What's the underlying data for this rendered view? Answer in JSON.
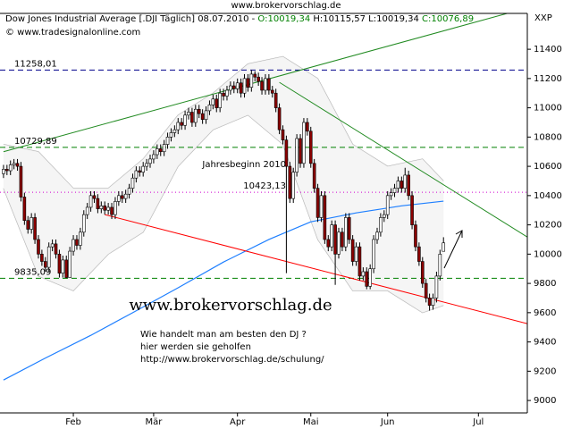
{
  "chart_data": {
    "type": "candlestick",
    "site": "www.brokervorschlag.de",
    "header_segments": [
      {
        "text": "Dow Jones Industrial Average [.DJI  Täglich] 08.07.2010 - ",
        "color": "#000000"
      },
      {
        "text": "O:10019,34",
        "color": "#008000"
      },
      {
        "text": " H:10115,57",
        "color": "#000000"
      },
      {
        "text": " L:10019,34",
        "color": "#000000"
      },
      {
        "text": " C:10076,89",
        "color": "#008000"
      }
    ],
    "copyright": "© www.tradesignalonline.com",
    "axis_code": "XXP",
    "watermark": "www.brokervorschlag.de",
    "notes": [
      "Wie handelt man am besten  den DJ ?",
      "hier werden sie geholfen",
      "http://www.brokervorschlag.de/schulung/"
    ],
    "annotation": "Jahresbeginn 2010",
    "up_color": "#ffffff",
    "down_color": "#8b0000",
    "xlim": [
      -1,
      150
    ],
    "ylim": [
      8915,
      11645
    ],
    "yticks": [
      9000,
      9200,
      9400,
      9600,
      9800,
      10000,
      10200,
      10400,
      10600,
      10800,
      11000,
      11200,
      11400
    ],
    "xticks": [
      {
        "value": 20,
        "label": "Feb"
      },
      {
        "value": 43,
        "label": "Mär"
      },
      {
        "value": 67,
        "label": "Apr"
      },
      {
        "value": 88,
        "label": "Mai"
      },
      {
        "value": 110,
        "label": "Jun"
      },
      {
        "value": 136,
        "label": "Jul"
      }
    ],
    "levels": [
      {
        "value": 11258.01,
        "label": "11258,01",
        "color": "#00008b",
        "dash": "6,4"
      },
      {
        "value": 10729.89,
        "label": "10729,89",
        "color": "#008000",
        "dash": "6,4"
      },
      {
        "value": 9835.09,
        "label": "9835,09",
        "color": "#008000",
        "dash": "6,4"
      },
      {
        "value": 10423.13,
        "label": "10423,13",
        "color": "#d000d0",
        "dash": "1,3"
      }
    ],
    "trendlines": [
      {
        "color": "#228b22",
        "points": [
          [
            0,
            10700
          ],
          [
            145,
            11650
          ]
        ]
      },
      {
        "color": "#228b22",
        "points": [
          [
            79,
            11174
          ],
          [
            150,
            10117
          ]
        ]
      },
      {
        "color": "#ff0000",
        "points": [
          [
            29,
            10270
          ],
          [
            150,
            9525
          ]
        ]
      }
    ],
    "moving_average": {
      "color": "#1e7fff",
      "x": [
        0,
        12,
        25,
        37,
        50,
        63,
        76,
        88,
        101,
        114,
        126
      ],
      "values": [
        9140,
        9290,
        9445,
        9600,
        9770,
        9946,
        10100,
        10221,
        10282,
        10330,
        10362
      ]
    },
    "bands": {
      "color": "#b0b0b0",
      "x": [
        0,
        10,
        20,
        30,
        40,
        50,
        60,
        70,
        80,
        90,
        100,
        110,
        120,
        126
      ],
      "upper": [
        10750,
        10700,
        10450,
        10450,
        10650,
        10950,
        11100,
        11300,
        11350,
        11200,
        10750,
        10600,
        10650,
        10500
      ],
      "lower": [
        10450,
        9850,
        9750,
        10000,
        10150,
        10600,
        10850,
        10950,
        10750,
        10100,
        9750,
        9750,
        9600,
        9650
      ]
    },
    "categories": [
      null,
      null,
      null,
      null,
      null,
      null,
      null,
      null,
      null,
      null,
      null,
      null,
      null,
      null,
      null,
      null,
      null,
      null,
      null,
      null,
      null,
      null,
      null,
      null,
      null,
      null,
      null,
      null,
      null,
      null,
      null,
      null,
      null,
      null,
      null,
      null,
      null,
      null,
      null,
      null,
      null,
      null,
      null,
      null,
      null,
      null,
      null,
      null,
      null,
      null,
      null,
      null,
      null,
      null,
      null,
      null,
      null,
      null,
      null,
      null,
      null,
      null,
      null,
      null,
      null,
      null,
      null,
      null,
      null,
      null,
      null,
      null,
      null,
      null,
      null,
      null,
      null,
      null,
      null,
      null,
      null,
      null,
      null,
      null,
      null,
      null,
      null,
      null,
      null,
      null,
      null,
      null,
      null,
      null,
      null,
      null,
      null,
      null,
      null,
      null,
      null,
      null,
      null,
      null,
      null,
      null,
      null,
      null,
      null,
      null,
      null,
      null,
      null,
      null,
      null,
      null,
      null,
      null,
      null,
      null,
      null,
      null,
      null,
      null,
      null,
      null,
      null
    ],
    "candles": [
      [
        10550,
        10610,
        10520,
        10580
      ],
      [
        10580,
        10610,
        10540,
        10570
      ],
      [
        10570,
        10640,
        10540,
        10610
      ],
      [
        10610,
        10650,
        10580,
        10620
      ],
      [
        10620,
        10650,
        10570,
        10600
      ],
      [
        10600,
        10630,
        10360,
        10390
      ],
      [
        10390,
        10420,
        10200,
        10230
      ],
      [
        10230,
        10260,
        10140,
        10170
      ],
      [
        10170,
        10280,
        10140,
        10250
      ],
      [
        10250,
        10280,
        10070,
        10100
      ],
      [
        10100,
        10130,
        9970,
        10000
      ],
      [
        10000,
        10030,
        9920,
        9950
      ],
      [
        9950,
        9980,
        9880,
        9910
      ],
      [
        9910,
        10080,
        9880,
        10050
      ],
      [
        10050,
        10100,
        10020,
        10070
      ],
      [
        10070,
        10100,
        9970,
        10000
      ],
      [
        10000,
        10030,
        9840,
        9870
      ],
      [
        9870,
        9990,
        9840,
        9960
      ],
      [
        9960,
        9990,
        9835,
        9840
      ],
      [
        9840,
        10050,
        9840,
        10020
      ],
      [
        10020,
        10130,
        9990,
        10100
      ],
      [
        10100,
        10130,
        10030,
        10060
      ],
      [
        10060,
        10180,
        10030,
        10150
      ],
      [
        10150,
        10300,
        10120,
        10270
      ],
      [
        10270,
        10350,
        10240,
        10320
      ],
      [
        10320,
        10430,
        10290,
        10400
      ],
      [
        10400,
        10430,
        10350,
        10380
      ],
      [
        10380,
        10410,
        10280,
        10310
      ],
      [
        10310,
        10360,
        10280,
        10330
      ],
      [
        10330,
        10360,
        10270,
        10300
      ],
      [
        10300,
        10350,
        10270,
        10320
      ],
      [
        10320,
        10350,
        10240,
        10270
      ],
      [
        10270,
        10390,
        10240,
        10360
      ],
      [
        10360,
        10430,
        10330,
        10400
      ],
      [
        10400,
        10430,
        10350,
        10380
      ],
      [
        10380,
        10440,
        10350,
        10410
      ],
      [
        10410,
        10480,
        10380,
        10450
      ],
      [
        10450,
        10550,
        10420,
        10520
      ],
      [
        10520,
        10600,
        10490,
        10570
      ],
      [
        10570,
        10600,
        10530,
        10560
      ],
      [
        10560,
        10630,
        10530,
        10600
      ],
      [
        10600,
        10650,
        10570,
        10620
      ],
      [
        10620,
        10680,
        10590,
        10650
      ],
      [
        10650,
        10710,
        10620,
        10680
      ],
      [
        10680,
        10750,
        10650,
        10720
      ],
      [
        10720,
        10750,
        10670,
        10700
      ],
      [
        10700,
        10780,
        10670,
        10750
      ],
      [
        10750,
        10830,
        10720,
        10800
      ],
      [
        10800,
        10860,
        10770,
        10830
      ],
      [
        10830,
        10880,
        10800,
        10850
      ],
      [
        10850,
        10930,
        10820,
        10900
      ],
      [
        10900,
        10930,
        10850,
        10880
      ],
      [
        10880,
        10980,
        10850,
        10950
      ],
      [
        10950,
        11000,
        10920,
        10970
      ],
      [
        10970,
        11000,
        10870,
        10900
      ],
      [
        10900,
        11020,
        10870,
        10990
      ],
      [
        10990,
        11020,
        10930,
        10960
      ],
      [
        10960,
        10990,
        10890,
        10920
      ],
      [
        10920,
        11010,
        10890,
        10980
      ],
      [
        10980,
        11050,
        10950,
        11020
      ],
      [
        11020,
        11090,
        10990,
        11060
      ],
      [
        11060,
        11090,
        10970,
        11000
      ],
      [
        11000,
        11130,
        10970,
        11100
      ],
      [
        11100,
        11130,
        11050,
        11080
      ],
      [
        11080,
        11150,
        11050,
        11120
      ],
      [
        11120,
        11180,
        11090,
        11150
      ],
      [
        11150,
        11180,
        11100,
        11130
      ],
      [
        11130,
        11200,
        11100,
        11170
      ],
      [
        11170,
        11200,
        11070,
        11100
      ],
      [
        11100,
        11230,
        11070,
        11200
      ],
      [
        11200,
        11230,
        11110,
        11140
      ],
      [
        11140,
        11258,
        11110,
        11230
      ],
      [
        11230,
        11250,
        11180,
        11210
      ],
      [
        11210,
        11240,
        11150,
        11180
      ],
      [
        11180,
        11210,
        11090,
        11120
      ],
      [
        11120,
        11230,
        11090,
        11200
      ],
      [
        11200,
        11230,
        11090,
        11120
      ],
      [
        11120,
        11150,
        11070,
        11100
      ],
      [
        11100,
        11130,
        10970,
        11000
      ],
      [
        11000,
        11030,
        10820,
        10850
      ],
      [
        10850,
        10880,
        10750,
        10780
      ],
      [
        10780,
        10810,
        9870,
        10600
      ],
      [
        10600,
        10630,
        10350,
        10380
      ],
      [
        10380,
        10590,
        10350,
        10560
      ],
      [
        10560,
        10820,
        10530,
        10790
      ],
      [
        10790,
        10820,
        10590,
        10620
      ],
      [
        10620,
        10930,
        10590,
        10900
      ],
      [
        10900,
        10930,
        10810,
        10840
      ],
      [
        10840,
        10870,
        10590,
        10620
      ],
      [
        10620,
        10650,
        10420,
        10450
      ],
      [
        10450,
        10480,
        10220,
        10250
      ],
      [
        10250,
        10430,
        10220,
        10400
      ],
      [
        10400,
        10430,
        10070,
        10100
      ],
      [
        10100,
        10130,
        10020,
        10050
      ],
      [
        10050,
        10230,
        10020,
        10200
      ],
      [
        10200,
        10230,
        9790,
        10000
      ],
      [
        10000,
        10180,
        9970,
        10150
      ],
      [
        10150,
        10180,
        10020,
        10050
      ],
      [
        10050,
        10280,
        10020,
        10250
      ],
      [
        10250,
        10280,
        10070,
        10100
      ],
      [
        10100,
        10130,
        9920,
        9950
      ],
      [
        9950,
        10080,
        9920,
        10050
      ],
      [
        10050,
        10080,
        9820,
        9850
      ],
      [
        9850,
        9910,
        9820,
        9880
      ],
      [
        9880,
        9910,
        9760,
        9780
      ],
      [
        9780,
        9930,
        9760,
        9900
      ],
      [
        9900,
        10130,
        9870,
        10100
      ],
      [
        10100,
        10180,
        10070,
        10150
      ],
      [
        10150,
        10280,
        10120,
        10250
      ],
      [
        10250,
        10300,
        10220,
        10270
      ],
      [
        10270,
        10430,
        10240,
        10400
      ],
      [
        10400,
        10450,
        10370,
        10420
      ],
      [
        10420,
        10480,
        10390,
        10450
      ],
      [
        10450,
        10530,
        10420,
        10500
      ],
      [
        10500,
        10530,
        10420,
        10450
      ],
      [
        10450,
        10590,
        10420,
        10540
      ],
      [
        10540,
        10570,
        10370,
        10400
      ],
      [
        10400,
        10430,
        10170,
        10200
      ],
      [
        10200,
        10230,
        10020,
        10050
      ],
      [
        10050,
        10080,
        9920,
        9950
      ],
      [
        9950,
        9980,
        9770,
        9800
      ],
      [
        9800,
        9830,
        9670,
        9700
      ],
      [
        9700,
        9730,
        9614,
        9650
      ],
      [
        9650,
        9730,
        9620,
        9700
      ],
      [
        9700,
        9880,
        9670,
        9850
      ],
      [
        9850,
        10030,
        9820,
        10000
      ],
      [
        10019.34,
        10115.57,
        10019.34,
        10076.89
      ]
    ]
  }
}
